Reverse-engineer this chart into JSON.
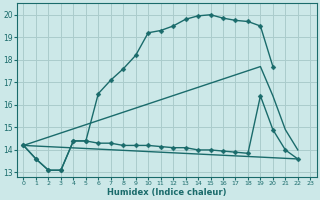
{
  "xlabel": "Humidex (Indice chaleur)",
  "background_color": "#cce8e8",
  "grid_color": "#aacccc",
  "line_color": "#1a6b6b",
  "xlim": [
    -0.5,
    23.5
  ],
  "ylim": [
    12.8,
    20.5
  ],
  "yticks": [
    13,
    14,
    15,
    16,
    17,
    18,
    19,
    20
  ],
  "xticks": [
    0,
    1,
    2,
    3,
    4,
    5,
    6,
    7,
    8,
    9,
    10,
    11,
    12,
    13,
    14,
    15,
    16,
    17,
    18,
    19,
    20,
    21,
    22,
    23
  ],
  "line1_x": [
    0,
    1,
    2,
    3,
    4,
    5,
    6,
    7,
    8,
    9,
    10,
    11,
    12,
    13,
    14,
    15,
    16,
    17,
    18,
    19,
    20
  ],
  "line1_y": [
    14.2,
    13.6,
    13.1,
    13.1,
    14.4,
    14.4,
    16.5,
    17.1,
    17.6,
    18.2,
    19.2,
    19.3,
    19.5,
    19.8,
    19.95,
    20.0,
    19.85,
    19.75,
    19.7,
    19.5,
    17.7
  ],
  "line2_x": [
    0,
    1,
    2,
    3,
    4,
    5,
    6,
    7,
    8,
    9,
    10,
    11,
    12,
    13,
    14,
    15,
    16,
    17,
    18,
    19,
    20,
    21,
    22
  ],
  "line2_y": [
    14.2,
    13.6,
    13.1,
    13.1,
    14.4,
    14.4,
    14.3,
    14.3,
    14.2,
    14.2,
    14.2,
    14.15,
    14.1,
    14.1,
    14.0,
    14.0,
    13.95,
    13.9,
    13.85,
    16.4,
    14.9,
    14.0,
    13.6
  ],
  "line3_x": [
    0,
    19,
    20,
    21,
    22
  ],
  "line3_y": [
    14.2,
    17.7,
    16.4,
    14.9,
    14.0
  ],
  "line4_x": [
    0,
    22
  ],
  "line4_y": [
    14.2,
    13.6
  ]
}
